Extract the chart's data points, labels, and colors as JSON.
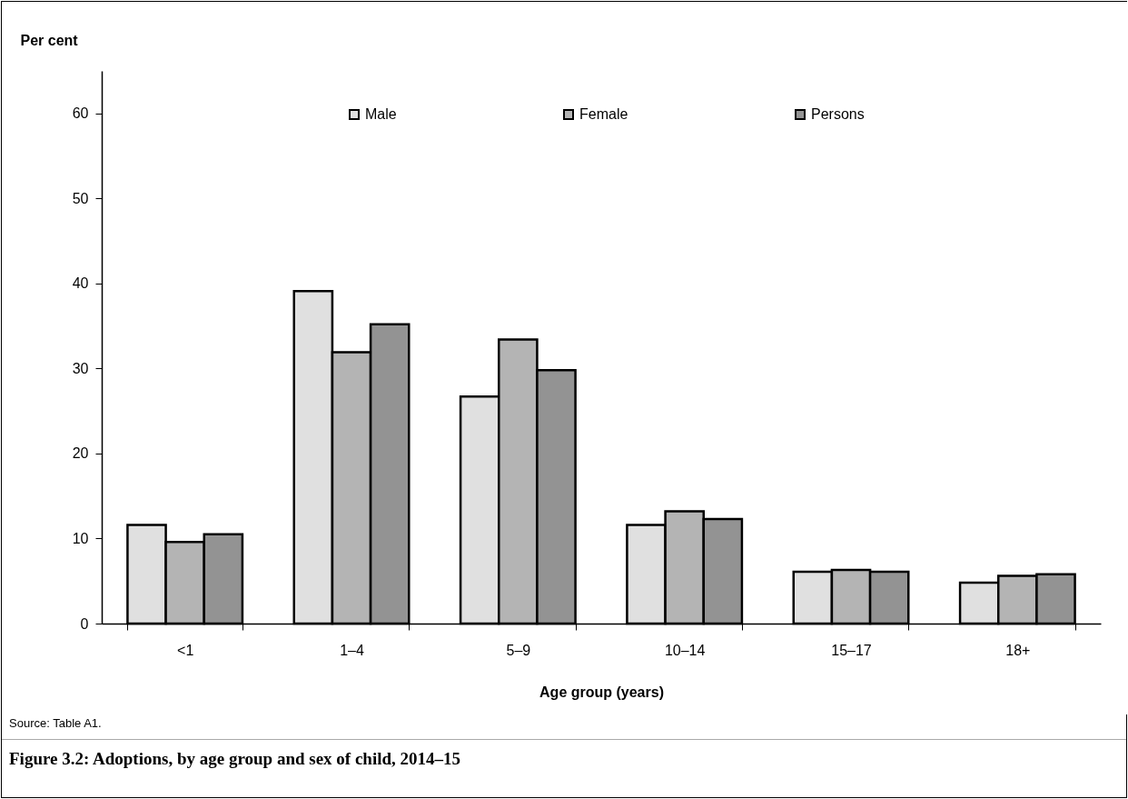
{
  "chart_data": {
    "type": "bar",
    "title": "Figure 3.2: Adoptions, by age group and sex of child, 2014–15",
    "xlabel": "Age group (years)",
    "ylabel": "Per cent",
    "annotations": [
      "Source: Table A1."
    ],
    "categories": [
      "<1",
      "1–4",
      "5–9",
      "10–14",
      "15–17",
      "18+"
    ],
    "series": [
      {
        "name": "Male",
        "color": "#e0e0e0",
        "values": [
          11.6,
          39.1,
          26.7,
          11.6,
          6.1,
          4.8
        ]
      },
      {
        "name": "Female",
        "color": "#b4b4b4",
        "values": [
          9.6,
          31.9,
          33.4,
          13.2,
          6.3,
          5.6
        ]
      },
      {
        "name": "Persons",
        "color": "#939393",
        "values": [
          10.5,
          35.2,
          29.8,
          12.3,
          6.1,
          5.8
        ]
      }
    ],
    "ylim": [
      0,
      65
    ],
    "yticks": [
      0,
      10,
      20,
      30,
      40,
      50,
      60
    ],
    "legend": "top"
  }
}
